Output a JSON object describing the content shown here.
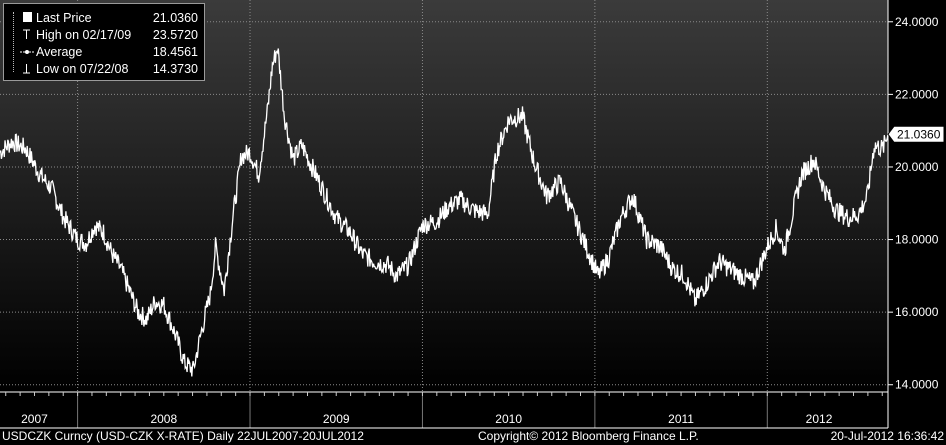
{
  "legend": {
    "last_label": "Last Price",
    "last_value": "21.0360",
    "high_label": "High on 02/17/09",
    "high_value": "23.5720",
    "avg_label": "Average",
    "avg_value": "18.4561",
    "low_label": "Low on 07/22/08",
    "low_value": "14.3730"
  },
  "footer": {
    "ticker": "USDCZK Curncy (USD-CZK X-RATE)  Daily 22JUL2007-20JUL2012",
    "copyright": "Copyright© 2012 Bloomberg Finance L.P.",
    "timestamp": "20-Jul-2012 16:36:42"
  },
  "last_price_tag": "21.0360",
  "colors": {
    "background_top": "#3b3b3b",
    "background_bottom": "#000000",
    "line": "#ffffff",
    "grid": "#8a8a8a",
    "axis_band": "#000000"
  },
  "chart_data": {
    "type": "line",
    "title": "",
    "xlabel": "",
    "ylabel": "",
    "ylim": [
      13.8,
      24.6
    ],
    "y_ticks": [
      "14.0000",
      "16.0000",
      "18.0000",
      "20.0000",
      "22.0000",
      "24.0000"
    ],
    "y_tick_values": [
      14,
      16,
      18,
      20,
      22,
      24
    ],
    "x_ticks": [
      "2007",
      "2008",
      "2009",
      "2010",
      "2011",
      "2012"
    ],
    "x_tick_positions": [
      2007.75,
      2008.5,
      2009.5,
      2010.5,
      2011.5,
      2012.3
    ],
    "x_range": [
      2007.55,
      2012.7
    ],
    "grid": true,
    "legend_position": "top-left",
    "series": [
      {
        "name": "Last Price",
        "x": [
          2007.55,
          2007.62,
          2007.7,
          2007.78,
          2007.85,
          2007.92,
          2008.0,
          2008.05,
          2008.1,
          2008.15,
          2008.2,
          2008.25,
          2008.3,
          2008.35,
          2008.4,
          2008.45,
          2008.5,
          2008.55,
          2008.58,
          2008.62,
          2008.67,
          2008.72,
          2008.77,
          2008.8,
          2008.85,
          2008.9,
          2008.95,
          2009.0,
          2009.05,
          2009.1,
          2009.13,
          2009.16,
          2009.2,
          2009.25,
          2009.3,
          2009.38,
          2009.45,
          2009.5,
          2009.58,
          2009.65,
          2009.72,
          2009.8,
          2009.85,
          2009.92,
          2010.0,
          2010.08,
          2010.15,
          2010.22,
          2010.3,
          2010.38,
          2010.43,
          2010.5,
          2010.58,
          2010.65,
          2010.72,
          2010.8,
          2010.88,
          2010.95,
          2011.02,
          2011.08,
          2011.15,
          2011.22,
          2011.3,
          2011.38,
          2011.45,
          2011.52,
          2011.58,
          2011.65,
          2011.72,
          2011.78,
          2011.85,
          2011.92,
          2012.0,
          2012.05,
          2012.1,
          2012.15,
          2012.2,
          2012.27,
          2012.33,
          2012.4,
          2012.47,
          2012.53,
          2012.58,
          2012.62,
          2012.67,
          2012.7
        ],
        "values": [
          20.4,
          20.7,
          20.5,
          19.8,
          19.4,
          18.6,
          18.0,
          17.9,
          18.4,
          18.2,
          17.6,
          17.2,
          16.6,
          16.0,
          15.8,
          16.3,
          16.2,
          15.6,
          15.2,
          14.6,
          14.4,
          15.5,
          16.5,
          17.8,
          16.6,
          18.6,
          20.3,
          20.4,
          19.8,
          21.5,
          22.8,
          23.3,
          21.4,
          20.2,
          20.6,
          19.8,
          19.1,
          18.6,
          18.2,
          17.6,
          17.4,
          17.3,
          17.0,
          17.3,
          18.4,
          18.5,
          18.9,
          19.1,
          18.8,
          18.7,
          20.4,
          21.3,
          21.4,
          20.1,
          19.2,
          19.6,
          18.6,
          17.8,
          17.0,
          17.5,
          18.6,
          19.2,
          18.0,
          17.8,
          17.2,
          17.0,
          16.3,
          16.8,
          17.4,
          17.2,
          17.0,
          16.8,
          17.8,
          18.3,
          17.7,
          18.8,
          19.8,
          20.2,
          19.4,
          18.8,
          18.6,
          18.7,
          19.2,
          20.6,
          20.5,
          20.9
        ]
      }
    ]
  }
}
